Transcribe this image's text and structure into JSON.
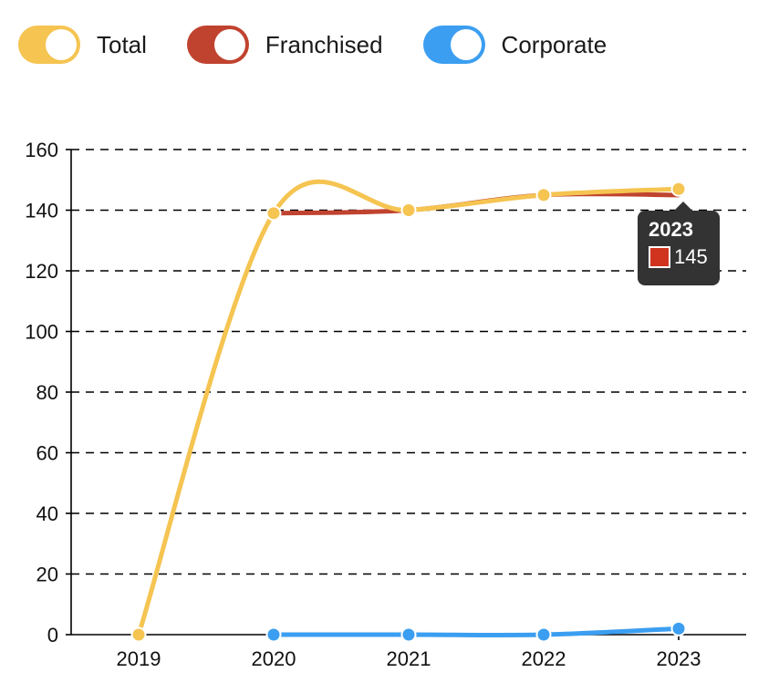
{
  "legend": {
    "items": [
      {
        "label": "Total",
        "color": "#F5C451"
      },
      {
        "label": "Franchised",
        "color": "#C0432F"
      },
      {
        "label": "Corporate",
        "color": "#3B9EF0"
      }
    ]
  },
  "chart_data": {
    "type": "line",
    "x": [
      "2019",
      "2020",
      "2021",
      "2022",
      "2023"
    ],
    "series": [
      {
        "name": "Franchised",
        "color": "#C0432F",
        "values": [
          null,
          139,
          140,
          145,
          145
        ]
      },
      {
        "name": "Total",
        "color": "#F5C451",
        "values": [
          0,
          139,
          140,
          145,
          147
        ]
      },
      {
        "name": "Corporate",
        "color": "#3B9EF0",
        "values": [
          null,
          0,
          0,
          0,
          2
        ]
      }
    ],
    "ylim": [
      0,
      160
    ],
    "yticks": [
      0,
      20,
      40,
      60,
      80,
      100,
      120,
      140,
      160
    ],
    "grid": true,
    "smooth": true,
    "legend_position": "top-left"
  },
  "tooltip": {
    "title": "2023",
    "value": "145",
    "swatch_color": "#D0341F"
  }
}
